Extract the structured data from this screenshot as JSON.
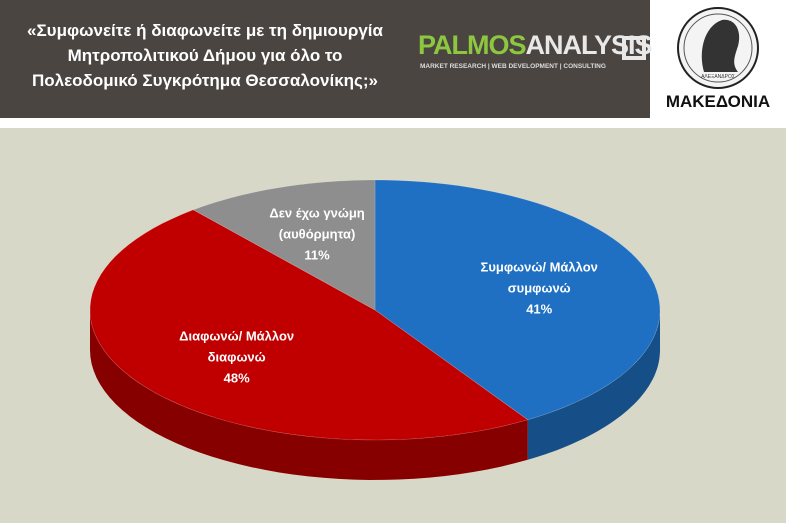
{
  "header": {
    "title": "«Συμφωνείτε ή διαφωνείτε με τη δημιουργία\nΜητροπολιτικού Δήμου για όλο το\nΠολεοδομικό Συγκρότημα Θεσσαλονίκης;»",
    "logo_part1": "PALMOS",
    "logo_part2": "ANALYSIS",
    "logo_tagline": "MARKET RESEARCH | WEB DEVELOPMENT | CONSULTING",
    "coin_text": "ΑΛΕΞΑΝΔΡΟΣ",
    "paper_name": "ΜΑΚΕΔΟΝΙΑ"
  },
  "chart_data": {
    "type": "pie",
    "categories": [
      "Συμφωνώ/ Μάλλον\nσυμφωνώ",
      "Διαφωνώ/ Μάλλον\nδιαφωνώ",
      "Δεν έχω γνώμη\n(αυθόρμητα)"
    ],
    "values": [
      41,
      48,
      11
    ],
    "value_labels": [
      "41%",
      "48%",
      "11%"
    ],
    "colors": [
      "#1f6fc2",
      "#c00000",
      "#8e8e8e"
    ]
  }
}
